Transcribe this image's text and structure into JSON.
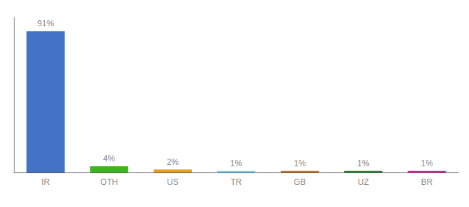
{
  "chart_data": {
    "type": "bar",
    "categories": [
      "IR",
      "OTH",
      "US",
      "TR",
      "GB",
      "UZ",
      "BR"
    ],
    "values": [
      91,
      4,
      2,
      1,
      1,
      1,
      1
    ],
    "value_labels": [
      "91%",
      "4%",
      "2%",
      "1%",
      "1%",
      "1%",
      "1%"
    ],
    "data_labels": true,
    "colors": [
      "#4472c4",
      "#3cb521",
      "#e8a020",
      "#87ceeb",
      "#c07828",
      "#2e7d32",
      "#e91e8c"
    ],
    "ylim": [
      0,
      100
    ],
    "grid": false,
    "tick_labels": "x"
  }
}
